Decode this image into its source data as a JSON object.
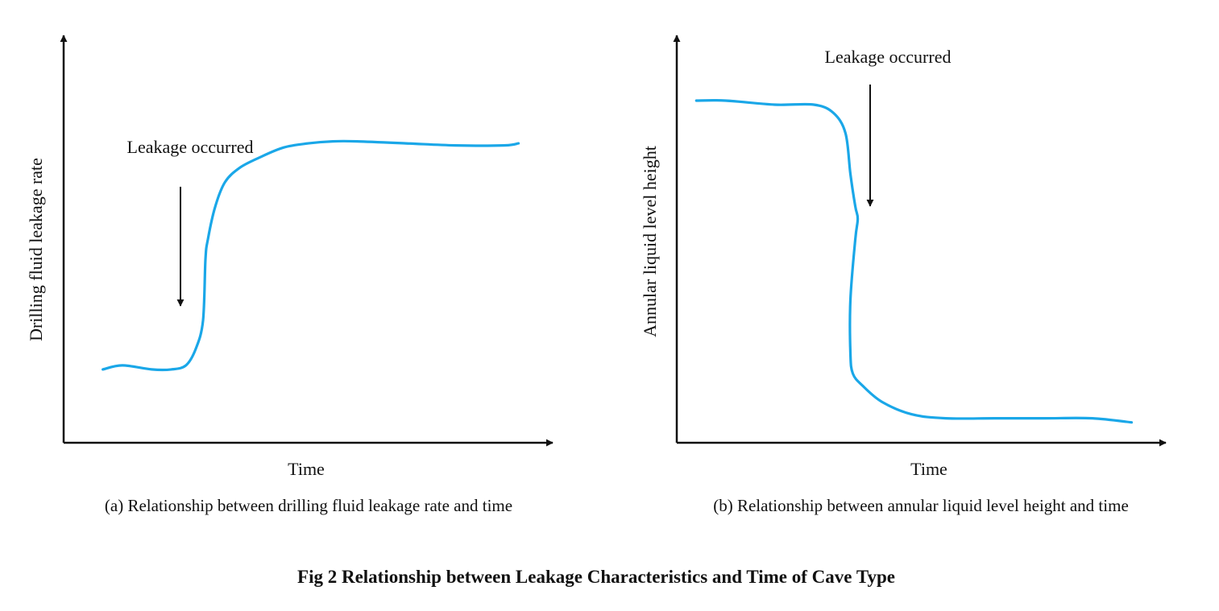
{
  "figure": {
    "title": "Fig 2 Relationship between Leakage Characteristics and Time of Cave Type"
  },
  "chart_data": [
    {
      "type": "line",
      "caption": "(a) Relationship between drilling fluid leakage rate and time",
      "xlabel": "Time",
      "ylabel": "Drilling fluid leakage rate",
      "ticks": "none",
      "grid": false,
      "xlim": [
        0,
        100
      ],
      "ylim": [
        0,
        100
      ],
      "annotation": {
        "text": "Leakage occurred",
        "x": 25,
        "arrow": "down"
      },
      "series": [
        {
          "color": "#1aa7e8",
          "x": [
            8,
            12,
            18,
            22,
            25,
            27,
            28.5,
            29,
            29.5,
            31,
            33,
            36,
            40,
            45,
            50,
            55,
            60,
            70,
            80,
            90,
            93
          ],
          "y": [
            18,
            19,
            18,
            18,
            19,
            23,
            30,
            45,
            50,
            58,
            64,
            67.5,
            70,
            72.5,
            73.5,
            74,
            74,
            73.5,
            73,
            73,
            73.5
          ]
        }
      ]
    },
    {
      "type": "line",
      "caption": "(b) Relationship between annular liquid level height and time",
      "xlabel": "Time",
      "ylabel": "Annular liquid level height",
      "ticks": "none",
      "grid": false,
      "xlim": [
        0,
        100
      ],
      "ylim": [
        0,
        100
      ],
      "annotation": {
        "text": "Leakage occurred",
        "x": 41,
        "arrow": "down"
      },
      "series": [
        {
          "color": "#1aa7e8",
          "x": [
            4,
            10,
            20,
            28,
            32,
            34.5,
            35.5,
            36.5,
            37,
            36.5,
            35.5,
            35.5,
            36,
            38,
            42,
            48,
            55,
            65,
            75,
            85,
            93
          ],
          "y": [
            84,
            84,
            83,
            83,
            81,
            76,
            66,
            58,
            55,
            50,
            35,
            22,
            17,
            14,
            10,
            7,
            6,
            6,
            6,
            6,
            5
          ]
        }
      ]
    }
  ]
}
